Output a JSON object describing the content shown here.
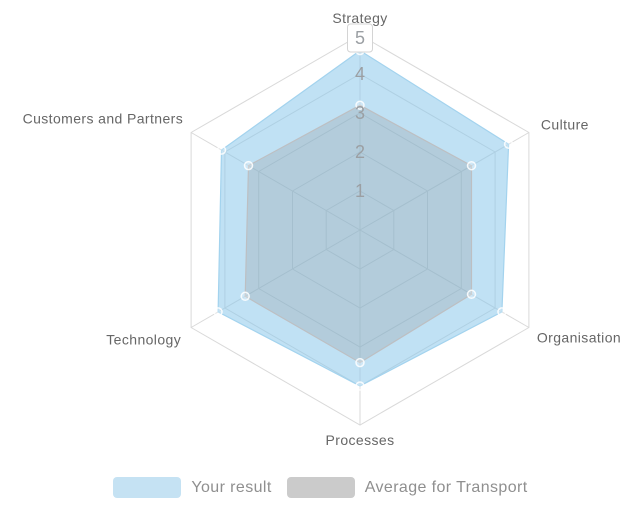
{
  "chart_data": {
    "type": "radar",
    "categories": [
      "Strategy",
      "Culture",
      "Organisation",
      "Processes",
      "Technology",
      "Customers and Partners"
    ],
    "series": [
      {
        "name": "Your result",
        "values": [
          4.6,
          4.4,
          4.2,
          4.0,
          4.2,
          4.1
        ],
        "fill": "#8cc8eb",
        "fill_opacity": 0.55,
        "stroke": "#a3d3ee",
        "legend_swatch": "#c5e2f3"
      },
      {
        "name": "Average for Transport",
        "values": [
          3.2,
          3.3,
          3.3,
          3.4,
          3.4,
          3.3
        ],
        "fill": "#828282",
        "fill_opacity": 0.22,
        "stroke": "#bdbfc2",
        "legend_swatch": "#cbcbcb"
      }
    ],
    "axis": {
      "min": 0,
      "max": 5,
      "ticks": [
        1,
        2,
        3,
        4,
        5
      ]
    },
    "grid_on": true,
    "legend_position": "bottom",
    "grid_color": "#d9d9d9",
    "tick_label_color": "#9b9fa3",
    "category_label_color": "#666666",
    "max_tick_box_border": "#d4d4d4",
    "marker_color": "#ffffff"
  }
}
